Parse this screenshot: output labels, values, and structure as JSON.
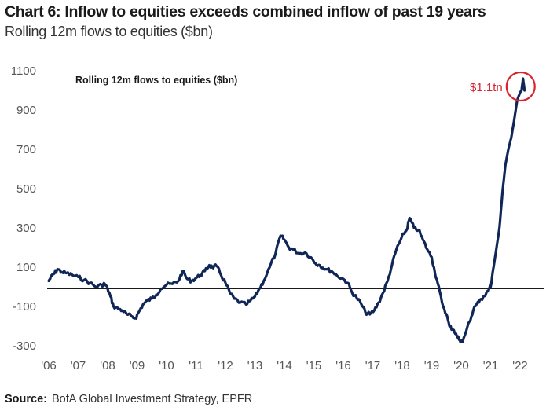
{
  "header": {
    "title": "Chart 6: Inflow to equities exceeds combined inflow of past 19 years",
    "subtitle": "Rolling 12m flows to equities ($bn)"
  },
  "footer": {
    "source_label": "Source:",
    "source_text": "BofA Global Investment Strategy, EPFR"
  },
  "colors": {
    "line": "#0f2656",
    "zero_line": "#1a1a1a",
    "annotation": "#d9232e"
  },
  "chart_data": {
    "type": "line",
    "title": "Rolling 12m flows to equities ($bn)",
    "xlabel": "",
    "ylabel": "",
    "ylim": [
      -300,
      1100
    ],
    "xlim": [
      2006,
      2022.5
    ],
    "grid": false,
    "legend": "none",
    "yticks": [
      1100,
      900,
      700,
      500,
      300,
      100,
      -100,
      -300
    ],
    "xtick_labels": [
      "'06",
      "'07",
      "'08",
      "'09",
      "'10",
      "'11",
      "'12",
      "'13",
      "'14",
      "'15",
      "'16",
      "'17",
      "'18",
      "'19",
      "'20",
      "'21",
      "'22"
    ],
    "xtick_values": [
      2006,
      2007,
      2008,
      2009,
      2010,
      2011,
      2012,
      2013,
      2014,
      2015,
      2016,
      2017,
      2018,
      2019,
      2020,
      2021,
      2022
    ],
    "reference_line": 0,
    "annotation": {
      "text": "$1.1tn",
      "x": 2022.1,
      "y": 1060
    },
    "series": [
      {
        "name": "Rolling 12m flows to equities ($bn)",
        "x": [
          2006.0,
          2006.1,
          2006.2,
          2006.3,
          2006.45,
          2006.6,
          2006.8,
          2007.0,
          2007.2,
          2007.4,
          2007.6,
          2007.8,
          2007.9,
          2008.0,
          2008.1,
          2008.2,
          2008.35,
          2008.5,
          2008.65,
          2008.8,
          2008.95,
          2009.05,
          2009.2,
          2009.35,
          2009.5,
          2009.65,
          2009.8,
          2010.0,
          2010.2,
          2010.4,
          2010.55,
          2010.7,
          2010.85,
          2011.0,
          2011.15,
          2011.3,
          2011.45,
          2011.55,
          2011.7,
          2011.85,
          2012.0,
          2012.15,
          2012.3,
          2012.5,
          2012.7,
          2012.85,
          2013.0,
          2013.15,
          2013.3,
          2013.5,
          2013.7,
          2013.87,
          2014.0,
          2014.15,
          2014.3,
          2014.5,
          2014.7,
          2014.9,
          2015.05,
          2015.2,
          2015.4,
          2015.6,
          2015.8,
          2016.0,
          2016.15,
          2016.3,
          2016.45,
          2016.6,
          2016.75,
          2016.9,
          2017.05,
          2017.2,
          2017.35,
          2017.5,
          2017.65,
          2017.8,
          2017.95,
          2018.05,
          2018.15,
          2018.25,
          2018.4,
          2018.55,
          2018.7,
          2018.85,
          2019.0,
          2019.1,
          2019.2,
          2019.35,
          2019.5,
          2019.6,
          2019.75,
          2019.85,
          2019.95,
          2020.05,
          2020.2,
          2020.35,
          2020.45,
          2020.6,
          2020.75,
          2020.9,
          2021.0,
          2021.1,
          2021.2,
          2021.3,
          2021.4,
          2021.5,
          2021.6,
          2021.7,
          2021.8,
          2021.9,
          2022.0,
          2022.05,
          2022.1,
          2022.15
        ],
        "values": [
          30,
          55,
          70,
          90,
          75,
          70,
          60,
          50,
          35,
          20,
          0,
          10,
          15,
          -10,
          -50,
          -100,
          -110,
          -120,
          -140,
          -150,
          -160,
          -130,
          -90,
          -70,
          -60,
          -40,
          -10,
          10,
          15,
          30,
          80,
          40,
          30,
          45,
          60,
          80,
          110,
          100,
          105,
          60,
          20,
          -30,
          -60,
          -80,
          -90,
          -70,
          -50,
          -10,
          30,
          100,
          170,
          260,
          240,
          200,
          190,
          170,
          175,
          150,
          120,
          110,
          90,
          80,
          55,
          40,
          20,
          -30,
          -55,
          -85,
          -130,
          -140,
          -120,
          -80,
          -30,
          30,
          110,
          190,
          240,
          270,
          290,
          350,
          300,
          290,
          240,
          190,
          150,
          80,
          20,
          -80,
          -140,
          -200,
          -220,
          -250,
          -270,
          -280,
          -210,
          -150,
          -100,
          -80,
          -50,
          -20,
          0,
          100,
          200,
          300,
          480,
          620,
          700,
          760,
          850,
          950,
          990,
          1000,
          1060,
          1000
        ]
      }
    ]
  }
}
